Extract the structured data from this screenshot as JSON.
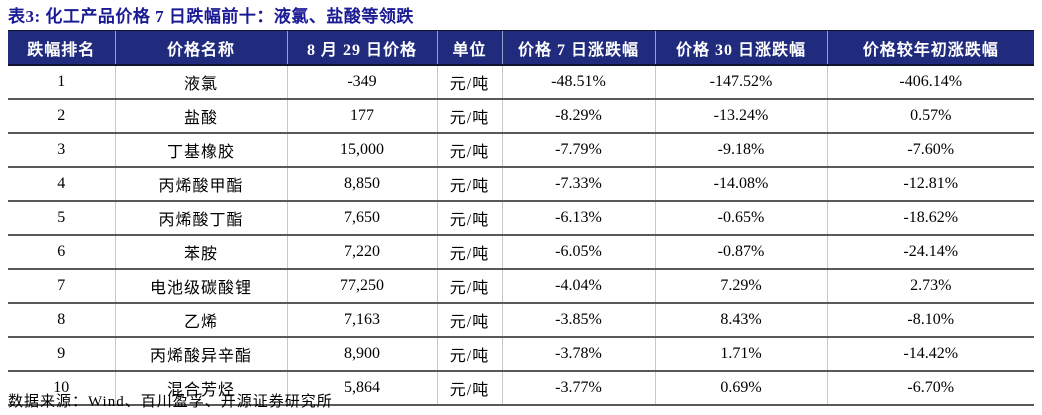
{
  "title": "表3: 化工产品价格 7 日跌幅前十：液氯、盐酸等领跌",
  "source_note": "数据来源：Wind、百川盈孚、开源证券研究所",
  "colors": {
    "title_text": "#1a1a94",
    "header_bg": "#202b7e",
    "header_text": "#ffffff",
    "row_separator": "#595959",
    "column_separator": "#c9c9c9"
  },
  "table": {
    "headers": [
      "跌幅排名",
      "价格名称",
      "8 月 29 日价格",
      "单位",
      "价格 7 日涨跌幅",
      "价格 30 日涨跌幅",
      "价格较年初涨跌幅"
    ],
    "rows": [
      {
        "rank": "1",
        "name": "液氯",
        "price": "-349",
        "unit": "元/吨",
        "chg7": "-48.51%",
        "chg30": "-147.52%",
        "chg_ytd": "-406.14%"
      },
      {
        "rank": "2",
        "name": "盐酸",
        "price": "177",
        "unit": "元/吨",
        "chg7": "-8.29%",
        "chg30": "-13.24%",
        "chg_ytd": "0.57%"
      },
      {
        "rank": "3",
        "name": "丁基橡胶",
        "price": "15,000",
        "unit": "元/吨",
        "chg7": "-7.79%",
        "chg30": "-9.18%",
        "chg_ytd": "-7.60%"
      },
      {
        "rank": "4",
        "name": "丙烯酸甲酯",
        "price": "8,850",
        "unit": "元/吨",
        "chg7": "-7.33%",
        "chg30": "-14.08%",
        "chg_ytd": "-12.81%"
      },
      {
        "rank": "5",
        "name": "丙烯酸丁酯",
        "price": "7,650",
        "unit": "元/吨",
        "chg7": "-6.13%",
        "chg30": "-0.65%",
        "chg_ytd": "-18.62%"
      },
      {
        "rank": "6",
        "name": "苯胺",
        "price": "7,220",
        "unit": "元/吨",
        "chg7": "-6.05%",
        "chg30": "-0.87%",
        "chg_ytd": "-24.14%"
      },
      {
        "rank": "7",
        "name": "电池级碳酸锂",
        "price": "77,250",
        "unit": "元/吨",
        "chg7": "-4.04%",
        "chg30": "7.29%",
        "chg_ytd": "2.73%"
      },
      {
        "rank": "8",
        "name": "乙烯",
        "price": "7,163",
        "unit": "元/吨",
        "chg7": "-3.85%",
        "chg30": "8.43%",
        "chg_ytd": "-8.10%"
      },
      {
        "rank": "9",
        "name": "丙烯酸异辛酯",
        "price": "8,900",
        "unit": "元/吨",
        "chg7": "-3.78%",
        "chg30": "1.71%",
        "chg_ytd": "-14.42%"
      },
      {
        "rank": "10",
        "name": "混合芳烃",
        "price": "5,864",
        "unit": "元/吨",
        "chg7": "-3.77%",
        "chg30": "0.69%",
        "chg_ytd": "-6.70%"
      }
    ]
  }
}
